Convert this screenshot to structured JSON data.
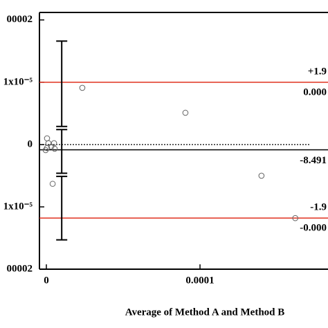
{
  "chart_data": {
    "type": "scatter",
    "x_label": "Average of Method A and Method B",
    "x": [
      4.5e-07,
      1.35e-06,
      4.5e-07,
      3.2e-06,
      -4.5e-07,
      5e-06,
      5.4e-06,
      4.1e-06,
      2.34e-05,
      9.05e-05,
      0.00014,
      0.000162
    ],
    "y": [
      1e-06,
      2.2e-07,
      -5.6e-07,
      -3.3e-07,
      -8.9e-07,
      2.2e-07,
      -6.7e-07,
      -6.3e-06,
      9.1e-06,
      5.1e-06,
      -5e-06,
      -1.18e-05
    ],
    "marker_color": "#666666",
    "xlim": [
      -4.5e-06,
      0.0001833
    ],
    "ylim": [
      -2e-05,
      2.12e-05
    ],
    "xticks": [
      0,
      0.0001
    ],
    "yticks": [
      {
        "value": 2e-05,
        "label": "00002"
      },
      {
        "value": 1e-05,
        "label": "1x10⁻⁵"
      },
      0,
      {
        "value": -1e-05,
        "label": "1x10⁻⁵"
      },
      {
        "value": -2e-05,
        "label": "00002"
      }
    ],
    "zero_line": 0,
    "reference_lines": [
      {
        "value": 1e-05,
        "color": "#e0301e",
        "labels": [
          "+1.9",
          "0.000"
        ]
      },
      {
        "value": -8.491e-07,
        "color": "#000000",
        "labels": [
          "-8.491"
        ]
      },
      {
        "value": -1.18e-05,
        "color": "#e0301e",
        "labels": [
          "-1.9",
          "-0.000"
        ]
      }
    ],
    "error_bars": [
      {
        "x": 1e-05,
        "low": 2.9e-06,
        "high": 1.66e-05
      },
      {
        "x": 1e-05,
        "low": -4.6e-06,
        "high": 2.4e-06
      },
      {
        "x": 1e-05,
        "low": -1.53e-05,
        "high": -5.1e-06
      }
    ]
  }
}
